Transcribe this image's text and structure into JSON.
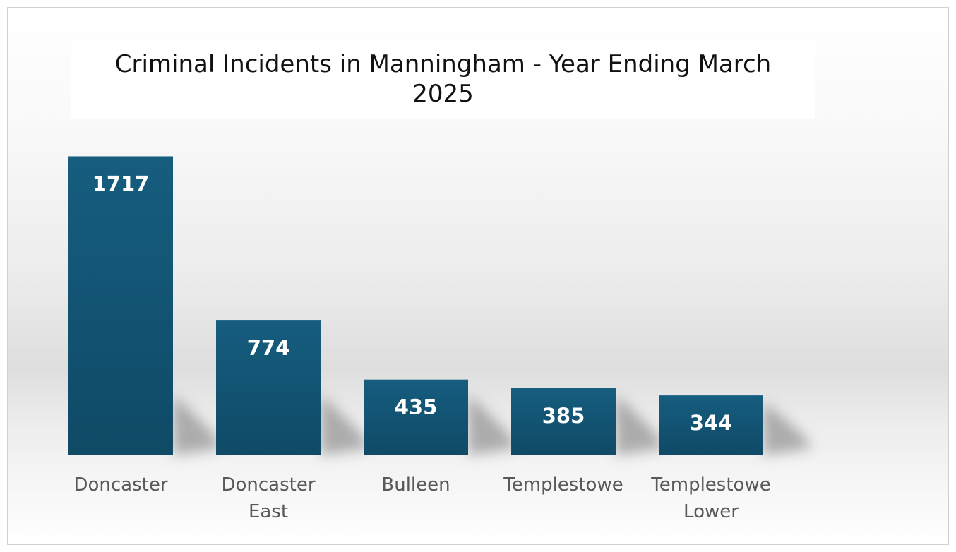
{
  "chart_data": {
    "type": "bar",
    "title": "Criminal Incidents in Manningham - Year Ending March 2025",
    "categories": [
      [
        "Doncaster"
      ],
      [
        "Doncaster",
        "East"
      ],
      [
        "Bulleen"
      ],
      [
        "Templestowe"
      ],
      [
        "Templestowe",
        "Lower"
      ]
    ],
    "values": [
      1717,
      774,
      435,
      385,
      344
    ],
    "data_labels": [
      "1717",
      "774",
      "435",
      "385",
      "344"
    ],
    "xlabel": "",
    "ylabel": "",
    "ylim": [
      0,
      1800
    ],
    "grid": false,
    "legend": "none",
    "bar_color": "#165d7f",
    "bar_color_dark": "#0f4a66",
    "label_color": "#595959"
  }
}
